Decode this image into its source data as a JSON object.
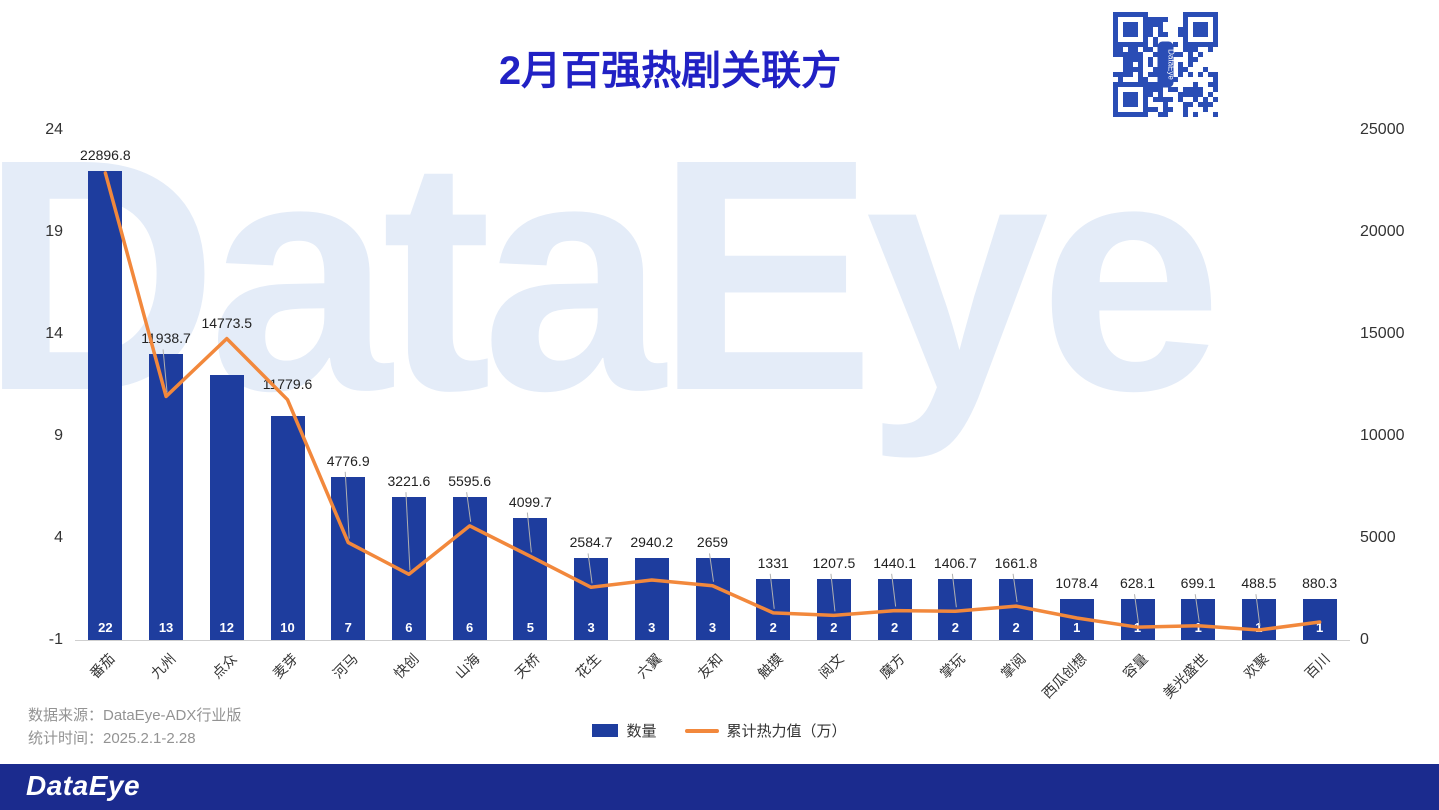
{
  "title": "2月百强热剧关联方",
  "watermark": "DataEye",
  "qr_center_label": "DataEye",
  "footer": {
    "source_line1": "数据来源：DataEye-ADX行业版",
    "source_line2": "统计时间：2025.2.1-2.28",
    "brand": "DataEye"
  },
  "legend": [
    {
      "label": "数量",
      "type": "bar",
      "color": "#1e3d9e"
    },
    {
      "label": "累计热力值（万）",
      "type": "line",
      "color": "#f2883c"
    }
  ],
  "colors": {
    "bar": "#1e3d9e",
    "line": "#f2883c",
    "title": "#2121c4",
    "watermark": "#e4ecf8",
    "footer_bg": "#1b2b8e",
    "qr": "#2a4db5"
  },
  "chart_data": {
    "type": "bar",
    "title": "2月百强热剧关联方",
    "categories": [
      "番茄",
      "九州",
      "点众",
      "麦芽",
      "河马",
      "快创",
      "山海",
      "天桥",
      "花生",
      "六翼",
      "友和",
      "触摸",
      "阅文",
      "魔方",
      "掌玩",
      "掌阅",
      "西瓜创想",
      "容量",
      "美光盛世",
      "欢聚",
      "百川"
    ],
    "series": [
      {
        "name": "数量",
        "chart_type": "bar",
        "axis": "left",
        "values": [
          22,
          13,
          12,
          10,
          7,
          6,
          6,
          5,
          3,
          3,
          3,
          2,
          2,
          2,
          2,
          2,
          1,
          1,
          1,
          1,
          1
        ]
      },
      {
        "name": "累计热力值（万）",
        "chart_type": "line",
        "axis": "right",
        "values": [
          22896.8,
          11938.7,
          14773.5,
          11779.6,
          4776.9,
          3221.6,
          5595.6,
          4099.7,
          2584.7,
          2940.2,
          2659,
          1331,
          1207.5,
          1440.1,
          1406.7,
          1661.8,
          1078.4,
          628.1,
          699.1,
          488.5,
          880.3
        ]
      }
    ],
    "left_axis": {
      "min": -1,
      "max": 24,
      "ticks": [
        24,
        19,
        14,
        9,
        4,
        -1
      ]
    },
    "right_axis": {
      "min": 0,
      "max": 25000,
      "ticks": [
        25000,
        20000,
        15000,
        10000,
        5000,
        0
      ]
    },
    "grid": false,
    "legend_position": "bottom"
  }
}
